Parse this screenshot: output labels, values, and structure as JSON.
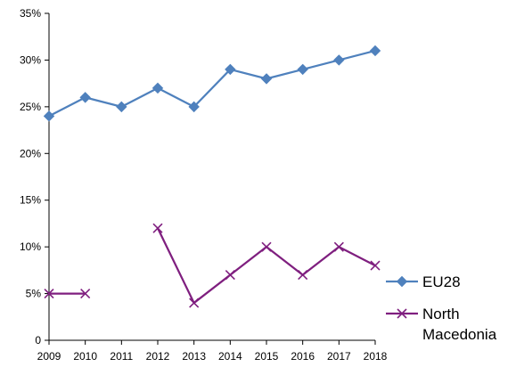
{
  "colors": {
    "axis": "#000000",
    "background": "#ffffff"
  },
  "chart_data": {
    "type": "line",
    "title": "",
    "xlabel": "",
    "ylabel": "",
    "x": [
      "2009",
      "2010",
      "2011",
      "2012",
      "2013",
      "2014",
      "2015",
      "2016",
      "2017",
      "2018"
    ],
    "ylim": [
      0,
      35
    ],
    "y_ticks": [
      0,
      5,
      10,
      15,
      20,
      25,
      30,
      35
    ],
    "y_tick_labels": [
      "0",
      "5%",
      "10%",
      "15%",
      "20%",
      "25%",
      "30%",
      "35%"
    ],
    "grid": false,
    "legend_position": "bottom-right",
    "series": [
      {
        "name": "EU28",
        "values": [
          24,
          26,
          25,
          27,
          25,
          29,
          28,
          29,
          30,
          31
        ],
        "color": "#4F81BD",
        "marker": "diamond"
      },
      {
        "name": "North Macedonia",
        "values": [
          5,
          5,
          null,
          12,
          4,
          7,
          10,
          7,
          10,
          8
        ],
        "color": "#7F1F7F",
        "marker": "x"
      }
    ]
  }
}
